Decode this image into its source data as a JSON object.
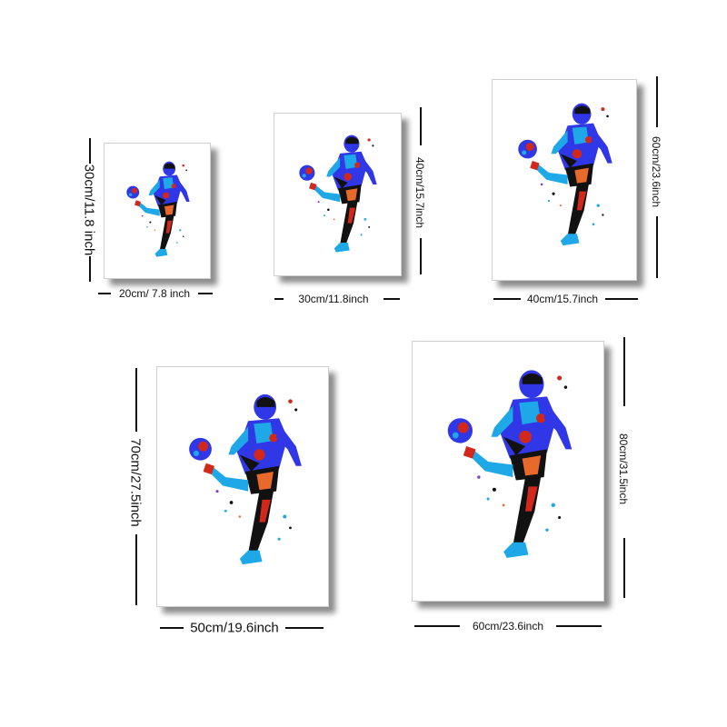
{
  "sizes": [
    {
      "width_label": "20cm/ 7.8 inch",
      "height_label": "30cm/11.8 inch"
    },
    {
      "width_label": "30cm/11.8inch",
      "height_label": "40cm/15.7inch"
    },
    {
      "width_label": "40cm/15.7inch",
      "height_label": "60cm/23.6inch"
    },
    {
      "width_label": "50cm/19.6inch",
      "height_label": "70cm/27.5inch"
    },
    {
      "width_label": "60cm/23.6inch",
      "height_label": "80cm/31.5inch"
    }
  ],
  "artwork": {
    "icon": "soccer-player-watercolor-icon",
    "colors": {
      "blue": "#2f37e6",
      "cyan": "#1fa8e8",
      "red": "#d2281c",
      "orange": "#e86a2a",
      "black": "#111111",
      "purple": "#7a3fc4"
    }
  }
}
